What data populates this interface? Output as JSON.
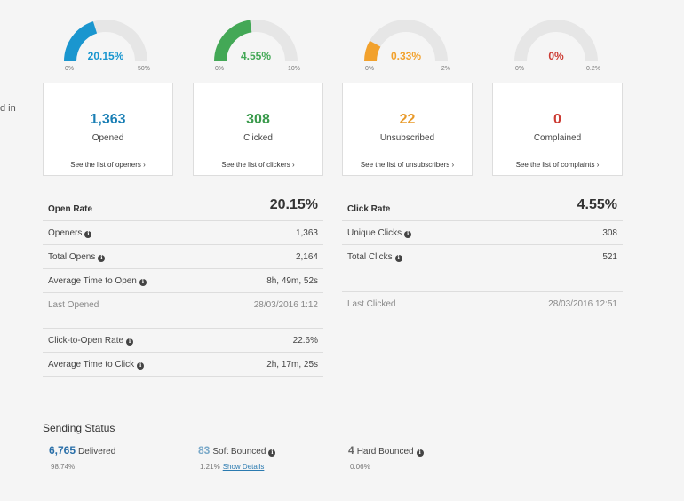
{
  "cut_text": "d in",
  "gauges": [
    {
      "percent": "20.15%",
      "min": "0%",
      "max": "50%",
      "color": "#1a96cf",
      "fraction": 0.403
    },
    {
      "percent": "4.55%",
      "min": "0%",
      "max": "10%",
      "color": "#43a856",
      "fraction": 0.455
    },
    {
      "percent": "0.33%",
      "min": "0%",
      "max": "2%",
      "color": "#f2a12c",
      "fraction": 0.165
    },
    {
      "percent": "0%",
      "min": "0%",
      "max": "0.2%",
      "color": "#cc3b33",
      "fraction": 0.0
    }
  ],
  "cards": [
    {
      "value": "1,363",
      "label": "Opened",
      "link": "See the list of openers ›",
      "color": "#1a7fb5"
    },
    {
      "value": "308",
      "label": "Clicked",
      "link": "See the list of clickers ›",
      "color": "#3a9a4c"
    },
    {
      "value": "22",
      "label": "Unsubscribed",
      "link": "See the list of unsubscribers ›",
      "color": "#e89a2a"
    },
    {
      "value": "0",
      "label": "Complained",
      "link": "See the list of complaints ›",
      "color": "#cc3b33"
    }
  ],
  "open_stats": {
    "title": "Open Rate",
    "rate": "20.15%",
    "rows": [
      {
        "label": "Openers",
        "value": "1,363"
      },
      {
        "label": "Total Opens",
        "value": "2,164"
      },
      {
        "label": "Average Time to Open",
        "value": "8h, 49m, 52s"
      },
      {
        "label": "Last Opened",
        "value": "28/03/2016 1:12"
      }
    ],
    "extra_rows": [
      {
        "label": "Click-to-Open Rate",
        "value": "22.6%"
      },
      {
        "label": "Average Time to Click",
        "value": "2h, 17m, 25s"
      }
    ]
  },
  "click_stats": {
    "title": "Click Rate",
    "rate": "4.55%",
    "rows": [
      {
        "label": "Unique Clicks",
        "value": "308"
      },
      {
        "label": "Total Clicks",
        "value": "521"
      }
    ],
    "last": {
      "label": "Last Clicked",
      "value": "28/03/2016 12:51"
    }
  },
  "sending": {
    "title": "Sending Status",
    "delivered": {
      "count": "6,765",
      "label": "Delivered",
      "pct": "98.74%"
    },
    "soft": {
      "count": "83",
      "label": "Soft Bounced",
      "pct": "1.21%",
      "link": "Show Details"
    },
    "hard": {
      "count": "4",
      "label": "Hard Bounced",
      "pct": "0.06%"
    }
  }
}
